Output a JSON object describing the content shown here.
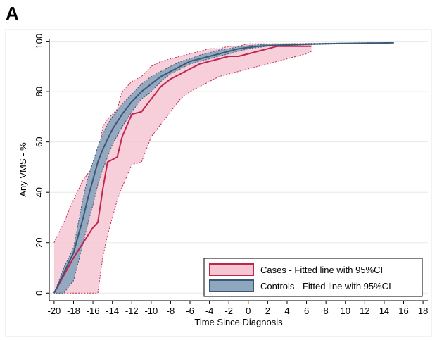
{
  "panel_label": "A",
  "chart_data": {
    "type": "line",
    "xlabel": "Time Since Diagnosis",
    "ylabel": "Any VMS - %",
    "xlim": [
      -20.5,
      18.5
    ],
    "ylim": [
      -3,
      101
    ],
    "x_ticks": [
      -20,
      -18,
      -16,
      -14,
      -12,
      -10,
      -8,
      -6,
      -4,
      -2,
      0,
      2,
      4,
      6,
      8,
      10,
      12,
      14,
      16,
      18
    ],
    "y_ticks": [
      0,
      20,
      40,
      60,
      80,
      100
    ],
    "legend_position": "bottom-right",
    "colors": {
      "cases_line": "#c0254e",
      "cases_band": "#f4c7d3",
      "controls_line": "#3b5875",
      "controls_band": "#8ea7bf",
      "grid": "#e8e8e8"
    },
    "series": [
      {
        "name": "Cases - Fitted line with 95%CI",
        "x": [
          -20,
          -19,
          -18,
          -17,
          -16,
          -15.5,
          -15,
          -14.5,
          -14,
          -13.5,
          -13,
          -12,
          -11,
          -10,
          -9,
          -8,
          -7,
          -6,
          -5,
          -4,
          -3,
          -2,
          -1,
          0,
          1,
          2,
          3,
          4,
          5,
          6,
          6.5
        ],
        "y": [
          0,
          7,
          14,
          20,
          26,
          28,
          41,
          52,
          53,
          54,
          62,
          71,
          72,
          77,
          82,
          85,
          87,
          89,
          91,
          92,
          93,
          94,
          94,
          95,
          96,
          97,
          98,
          98,
          98,
          98,
          98
        ],
        "lower": [
          0,
          0,
          0,
          0,
          0,
          0,
          14,
          23,
          30,
          37,
          42,
          51,
          52,
          62,
          67,
          72,
          77,
          80,
          82,
          84,
          86,
          87,
          88,
          89,
          90,
          91,
          92,
          93,
          94,
          95,
          96
        ],
        "upper": [
          20,
          28,
          37,
          45,
          50,
          52,
          66,
          69,
          71,
          73,
          80,
          84,
          86,
          90,
          92,
          93,
          94,
          95,
          96,
          97,
          97,
          98,
          98,
          99,
          99,
          99,
          99,
          99,
          99,
          99,
          99
        ]
      },
      {
        "name": "Controls - Fitted line with 95%CI",
        "x": [
          -20,
          -19,
          -18,
          -17,
          -16.5,
          -16,
          -15.5,
          -15,
          -14.5,
          -14,
          -13,
          -12,
          -11,
          -10,
          -9,
          -8,
          -7,
          -6,
          -5,
          -4,
          -3,
          -2,
          -1,
          0,
          1,
          2,
          4,
          6,
          8,
          10,
          12,
          14,
          15
        ],
        "y": [
          0,
          8,
          16,
          30,
          38,
          45,
          52,
          57,
          61,
          65,
          71,
          76,
          80,
          83,
          86,
          88,
          90,
          92,
          93,
          94,
          95,
          96,
          97,
          97.5,
          98,
          98.2,
          98.5,
          98.8,
          99,
          99.1,
          99.2,
          99.3,
          99.4
        ],
        "lower": [
          0,
          0,
          5,
          20,
          28,
          35,
          43,
          49,
          54,
          59,
          66,
          72,
          77,
          80,
          84,
          87,
          89,
          91,
          92,
          93,
          94,
          95,
          96,
          97,
          97.5,
          98,
          98.3,
          98.6,
          98.8,
          99,
          99.1,
          99.2,
          99.3
        ],
        "upper": [
          0,
          10,
          18,
          38,
          46,
          52,
          58,
          63,
          67,
          70,
          75,
          79,
          83,
          86,
          88,
          90,
          92,
          93,
          94.5,
          95.5,
          96.5,
          97,
          97.8,
          98.2,
          98.6,
          98.8,
          99,
          99.1,
          99.2,
          99.3,
          99.4,
          99.5,
          99.6
        ]
      }
    ]
  }
}
